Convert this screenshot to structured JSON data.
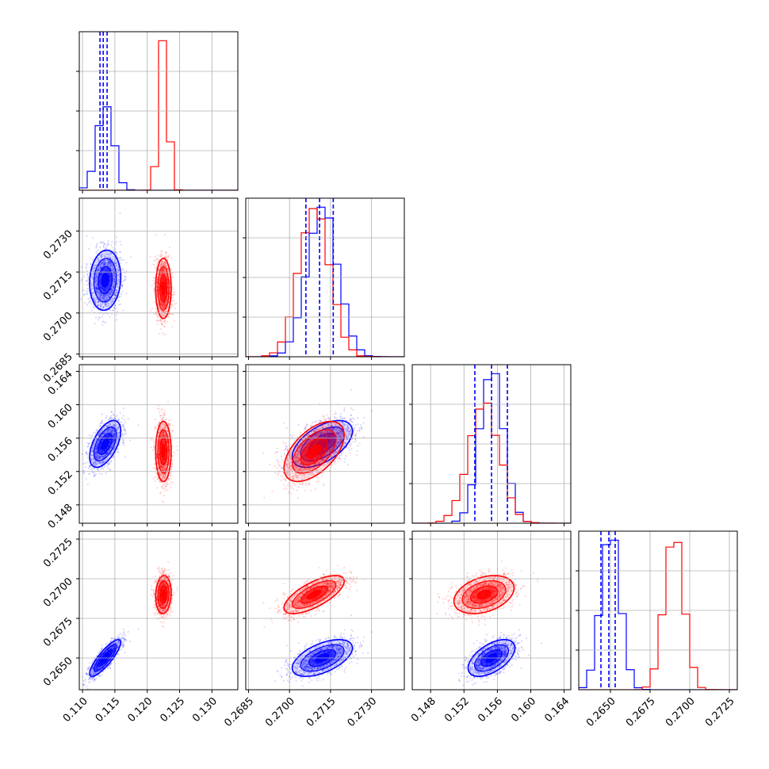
{
  "chart_data": {
    "type": "corner",
    "colors": {
      "blue": "#0000ff",
      "red": "#ff0000"
    },
    "params": [
      {
        "ticks": [
          0.11,
          0.115,
          0.12,
          0.125,
          0.13
        ],
        "labels": [
          "0.110",
          "0.115",
          "0.120",
          "0.125",
          "0.130"
        ],
        "range": [
          0.1095,
          0.134
        ]
      },
      {
        "ticks": [
          0.2685,
          0.27,
          0.2715,
          0.273
        ],
        "labels": [
          "0.2685",
          "0.2700",
          "0.2715",
          "0.2730"
        ],
        "range": [
          0.2684,
          0.2742
        ]
      },
      {
        "ticks": [
          0.148,
          0.152,
          0.156,
          0.16,
          0.164
        ],
        "labels": [
          "0.148",
          "0.152",
          "0.156",
          "0.160",
          "0.164"
        ],
        "range": [
          0.1458,
          0.1648
        ]
      },
      {
        "ticks": [
          0.265,
          0.2675,
          0.27,
          0.2725
        ],
        "labels": [
          "0.2650",
          "0.2675",
          "0.2700",
          "0.2725"
        ],
        "range": [
          0.263,
          0.273
        ]
      }
    ],
    "series": [
      {
        "color": "blue",
        "mean": [
          0.1135,
          0.2712,
          0.1553,
          0.265
        ],
        "sd": [
          0.0012,
          0.00055,
          0.0014,
          0.00058
        ],
        "corr": [
          [
            1,
            0.1,
            0.55,
            0.85
          ],
          [
            0.1,
            1,
            0.55,
            0.55
          ],
          [
            0.55,
            0.55,
            1,
            0.55
          ],
          [
            0.85,
            0.55,
            0.55,
            1
          ]
        ],
        "quantiles": [
          [
            0.1127,
            0.1132,
            0.1138
          ],
          [
            0.2706,
            0.2711,
            0.2716
          ],
          [
            0.1533,
            0.1553,
            0.1572
          ],
          [
            0.2644,
            0.2649,
            0.2653
          ]
        ]
      },
      {
        "color": "red",
        "mean": [
          0.1225,
          0.2709,
          0.1544,
          0.269
        ],
        "sd": [
          0.0006,
          0.00055,
          0.0018,
          0.0006
        ],
        "corr": [
          [
            1,
            0,
            0,
            0.1
          ],
          [
            0,
            1,
            0.55,
            0.7
          ],
          [
            0,
            0.55,
            1,
            0.35
          ],
          [
            0.1,
            0.7,
            0.35,
            1
          ]
        ],
        "quantiles": []
      }
    ]
  }
}
